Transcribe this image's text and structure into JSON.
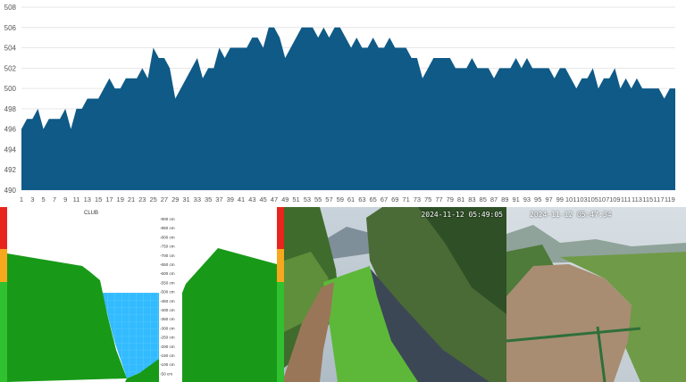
{
  "colors": {
    "area": "#0f5a86",
    "grid": "#e6e6e6",
    "axis_text": "#555555",
    "water": "#33bbff",
    "grass": "#189a18",
    "level_red": "#e8251c",
    "level_orange": "#f8a81e",
    "level_green": "#30c030"
  },
  "chart_data": {
    "type": "area",
    "title": "",
    "xlabel": "",
    "ylabel": "",
    "ylim": [
      490,
      508
    ],
    "y_ticks": [
      "490",
      "492",
      "494",
      "496",
      "498",
      "500",
      "502",
      "504",
      "506",
      "508"
    ],
    "x_tick_labels": [
      "1",
      "3",
      "5",
      "7",
      "9",
      "11",
      "13",
      "15",
      "17",
      "19",
      "21",
      "23",
      "25",
      "27",
      "29",
      "31",
      "33",
      "35",
      "37",
      "39",
      "41",
      "43",
      "45",
      "47",
      "49",
      "51",
      "53",
      "55",
      "57",
      "59",
      "61",
      "63",
      "65",
      "67",
      "69",
      "71",
      "73",
      "75",
      "77",
      "79",
      "81",
      "83",
      "85",
      "87",
      "89",
      "91",
      "93",
      "95",
      "97",
      "99",
      "101",
      "103",
      "105",
      "107",
      "109",
      "111",
      "113",
      "115",
      "117",
      "119"
    ],
    "grid": true,
    "series": [
      {
        "values": [
          496,
          497,
          497,
          498,
          496,
          497,
          497,
          497,
          498,
          496,
          498,
          498,
          499,
          499,
          499,
          500,
          501,
          500,
          500,
          501,
          501,
          501,
          502,
          501,
          504,
          503,
          503,
          502,
          499,
          500,
          501,
          502,
          503,
          501,
          502,
          502,
          504,
          503,
          504,
          504,
          504,
          504,
          505,
          505,
          504,
          506,
          506,
          505,
          503,
          504,
          505,
          506,
          506,
          506,
          505,
          506,
          505,
          506,
          506,
          505,
          504,
          505,
          504,
          504,
          505,
          504,
          504,
          505,
          504,
          504,
          504,
          503,
          503,
          501,
          502,
          503,
          503,
          503,
          503,
          502,
          502,
          502,
          503,
          502,
          502,
          502,
          501,
          502,
          502,
          502,
          503,
          502,
          503,
          502,
          502,
          502,
          502,
          501,
          502,
          502,
          501,
          500,
          501,
          501,
          502,
          500,
          501,
          501,
          502,
          500,
          501,
          500,
          501,
          500,
          500,
          500,
          500,
          499,
          500,
          500
        ]
      }
    ]
  },
  "section": {
    "title": "CLUB",
    "depth_labels": [
      "-900 cm",
      "-850 cm",
      "-800 cm",
      "-750 cm",
      "-700 cm",
      "-650 cm",
      "-600 cm",
      "-550 cm",
      "-500 cm",
      "-450 cm",
      "-400 cm",
      "-350 cm",
      "-300 cm",
      "-250 cm",
      "-200 cm",
      "-150 cm",
      "-100 cm",
      "-50 cm"
    ]
  },
  "cameras": [
    {
      "timestamp": "2024-11-12 05:49:05"
    },
    {
      "timestamp": "2024-11-12 05:47:34"
    }
  ]
}
